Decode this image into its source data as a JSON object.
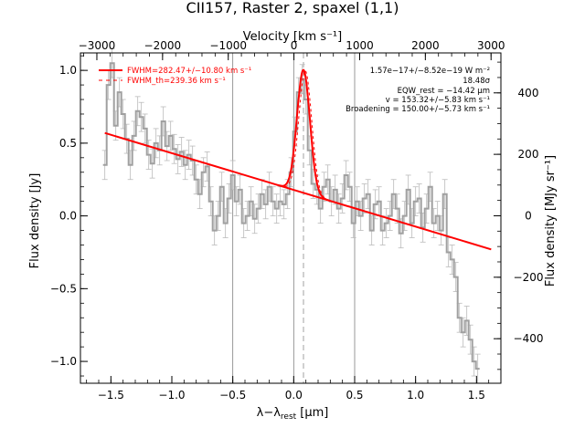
{
  "chart_data": {
    "type": "line",
    "title": "CII157, Raster 2, spaxel (1,1)",
    "xlabel_main": "λ",
    "xlabel_minus": "−λ",
    "xlabel_sub": "rest",
    "xlabel_unit": " [μm]",
    "ylabel_left": "Flux density [Jy]",
    "ylabel_right": "Flux density [MJy sr⁻¹]",
    "top_axis_label": "Velocity [km s⁻¹]",
    "xlim": [
      -1.75,
      1.7
    ],
    "ylim": [
      -1.15,
      1.12
    ],
    "top_xlim": [
      -3250,
      3150
    ],
    "right_ylim": [
      -545,
      530
    ],
    "x_ticks": [
      -1.5,
      -1.0,
      -0.5,
      0.0,
      0.5,
      1.0,
      1.5
    ],
    "x_tick_labels": [
      "−1.5",
      "−1.0",
      "−0.5",
      "0.0",
      "0.5",
      "1.0",
      "1.5"
    ],
    "y_ticks": [
      -1.0,
      -0.5,
      0.0,
      0.5,
      1.0
    ],
    "y_tick_labels": [
      "−1.0",
      "−0.5",
      "0.0",
      "0.5",
      "1.0"
    ],
    "top_ticks": [
      -3000,
      -2000,
      -1000,
      0,
      1000,
      2000,
      3000
    ],
    "top_tick_labels": [
      "−3000",
      "−2000",
      "−1000",
      "0",
      "1000",
      "2000",
      "3000"
    ],
    "right_ticks": [
      -400,
      -200,
      0,
      200,
      400
    ],
    "right_tick_labels": [
      "−400",
      "−200",
      "0",
      "200",
      "400"
    ],
    "vertical_lines": [
      -0.5,
      0.0,
      0.5
    ],
    "rest_line": 0.08,
    "legend": [
      {
        "label": "FWHM=282.47+/−10.80 km s⁻¹",
        "style": "solid",
        "color": "#ff0000"
      },
      {
        "label": "FWHM_th=239.36 km s⁻¹",
        "style": "dashed",
        "color": "#ff0000"
      }
    ],
    "annotations": [
      "1.57e−17+/−8.52e−19 W m⁻²",
      "18.48σ",
      "EQW_rest = −14.42 μm",
      "v = 153.32+/−5.83 km s⁻¹",
      "Broadening = 150.00+/−5.73 km s⁻¹"
    ],
    "baseline": {
      "x": [
        -1.55,
        1.62
      ],
      "y": [
        0.57,
        -0.23
      ]
    },
    "gaussian": {
      "center": 0.08,
      "sigma": 0.053,
      "amplitude": 0.845
    },
    "colors": {
      "data": "#a0a0a0",
      "fit": "#ff0000",
      "axes": "#000000",
      "vline": "#808080"
    },
    "series": [
      {
        "name": "data",
        "x": [
          -1.55,
          -1.52,
          -1.49,
          -1.46,
          -1.43,
          -1.4,
          -1.37,
          -1.34,
          -1.31,
          -1.28,
          -1.25,
          -1.22,
          -1.19,
          -1.16,
          -1.13,
          -1.1,
          -1.07,
          -1.04,
          -1.01,
          -0.98,
          -0.95,
          -0.92,
          -0.89,
          -0.86,
          -0.83,
          -0.8,
          -0.77,
          -0.74,
          -0.71,
          -0.68,
          -0.65,
          -0.62,
          -0.59,
          -0.56,
          -0.53,
          -0.5,
          -0.47,
          -0.44,
          -0.41,
          -0.38,
          -0.35,
          -0.32,
          -0.29,
          -0.26,
          -0.23,
          -0.2,
          -0.17,
          -0.14,
          -0.11,
          -0.08,
          -0.05,
          -0.02,
          0.01,
          0.04,
          0.07,
          0.1,
          0.13,
          0.16,
          0.19,
          0.22,
          0.25,
          0.28,
          0.31,
          0.34,
          0.37,
          0.4,
          0.43,
          0.46,
          0.49,
          0.52,
          0.55,
          0.58,
          0.61,
          0.64,
          0.67,
          0.7,
          0.73,
          0.76,
          0.79,
          0.82,
          0.85,
          0.88,
          0.91,
          0.94,
          0.97,
          1.0,
          1.03,
          1.06,
          1.09,
          1.12,
          1.15,
          1.18,
          1.21,
          1.24,
          1.27,
          1.3,
          1.33,
          1.36,
          1.39,
          1.42,
          1.45,
          1.48,
          1.51
        ],
        "y": [
          0.35,
          0.9,
          1.05,
          0.62,
          0.85,
          0.7,
          0.53,
          0.35,
          0.55,
          0.72,
          0.68,
          0.6,
          0.42,
          0.36,
          0.5,
          0.45,
          0.65,
          0.48,
          0.55,
          0.46,
          0.39,
          0.44,
          0.35,
          0.42,
          0.38,
          0.25,
          0.15,
          0.3,
          0.34,
          0.1,
          -0.1,
          0.0,
          0.2,
          -0.05,
          0.12,
          0.28,
          0.1,
          0.18,
          -0.05,
          0.0,
          0.1,
          -0.02,
          0.05,
          0.15,
          0.08,
          0.2,
          0.1,
          0.05,
          0.1,
          0.08,
          0.15,
          0.3,
          0.58,
          0.85,
          0.94,
          0.8,
          0.45,
          0.22,
          0.18,
          0.05,
          0.2,
          0.25,
          0.1,
          0.18,
          0.05,
          0.12,
          0.28,
          0.2,
          -0.05,
          0.1,
          0.0,
          0.12,
          0.15,
          -0.1,
          0.08,
          0.1,
          -0.1,
          -0.05,
          0.0,
          0.15,
          0.05,
          -0.12,
          0.0,
          0.18,
          -0.05,
          0.1,
          0.12,
          -0.08,
          0.05,
          0.2,
          -0.05,
          0.0,
          -0.1,
          0.15,
          -0.25,
          -0.3,
          -0.42,
          -0.7,
          -0.8,
          -0.72,
          -0.85,
          -1.0,
          -1.05
        ],
        "err": [
          0.1,
          0.1,
          0.1,
          0.1,
          0.1,
          0.1,
          0.1,
          0.1,
          0.1,
          0.1,
          0.1,
          0.1,
          0.1,
          0.1,
          0.1,
          0.1,
          0.1,
          0.1,
          0.1,
          0.1,
          0.1,
          0.1,
          0.1,
          0.1,
          0.1,
          0.1,
          0.1,
          0.1,
          0.1,
          0.1,
          0.1,
          0.1,
          0.1,
          0.1,
          0.1,
          0.1,
          0.1,
          0.1,
          0.1,
          0.1,
          0.1,
          0.1,
          0.1,
          0.1,
          0.1,
          0.1,
          0.1,
          0.1,
          0.1,
          0.1,
          0.1,
          0.1,
          0.1,
          0.1,
          0.1,
          0.1,
          0.1,
          0.1,
          0.1,
          0.1,
          0.1,
          0.1,
          0.1,
          0.1,
          0.1,
          0.1,
          0.1,
          0.1,
          0.1,
          0.1,
          0.1,
          0.1,
          0.1,
          0.1,
          0.1,
          0.1,
          0.1,
          0.1,
          0.1,
          0.1,
          0.1,
          0.1,
          0.1,
          0.1,
          0.1,
          0.1,
          0.1,
          0.1,
          0.1,
          0.1,
          0.1,
          0.1,
          0.1,
          0.1,
          0.1,
          0.1,
          0.1,
          0.1,
          0.1,
          0.1,
          0.1,
          0.1,
          0.1
        ]
      }
    ]
  }
}
